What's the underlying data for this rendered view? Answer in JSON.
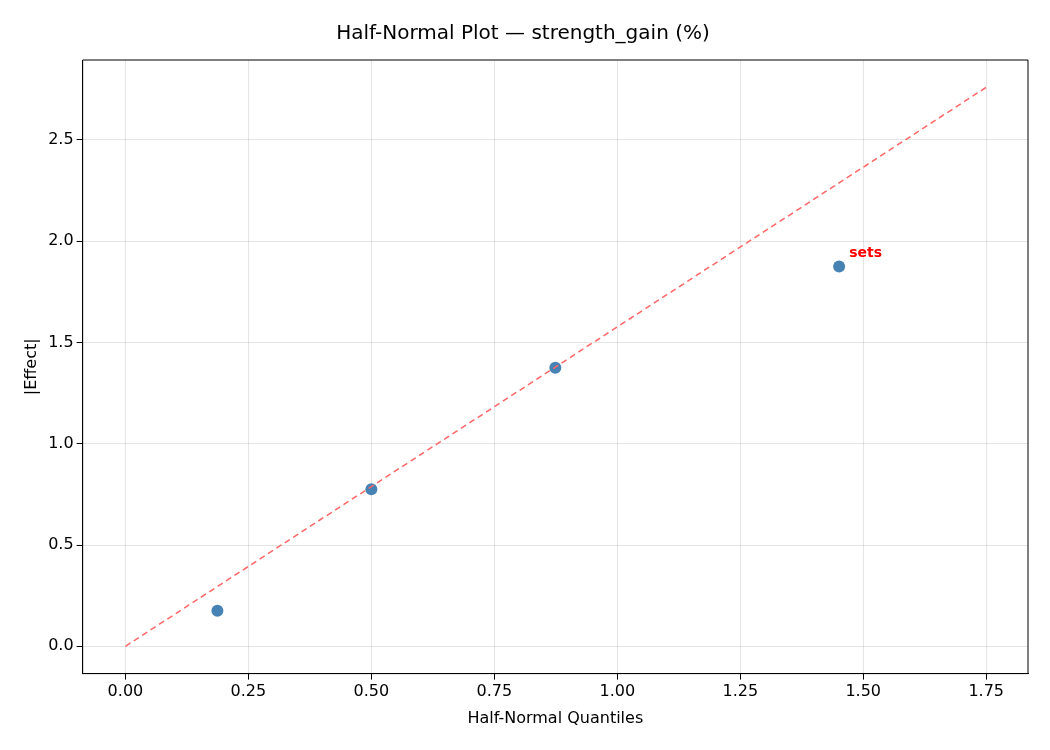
{
  "chart_data": {
    "type": "scatter",
    "title": "Half-Normal Plot — strength_gain (%)",
    "xlabel": "Half-Normal Quantiles",
    "ylabel": "|Effect|",
    "series": [
      {
        "color": "#4682b4",
        "x": [
          0.187,
          0.5,
          0.874,
          1.451
        ],
        "values": [
          0.175,
          0.775,
          1.375,
          1.875
        ],
        "marker": "circle"
      },
      {
        "type": "line",
        "color": "#ff6666",
        "x": [
          0,
          1.75
        ],
        "values": [
          0,
          2.76
        ],
        "line_style": "dashed",
        "marker": "none"
      }
    ],
    "xlim": [
      -0.087,
      1.835
    ],
    "ylim": [
      -0.135,
      2.895
    ],
    "xticks": [
      {
        "value": 0,
        "label": "0.00"
      },
      {
        "value": 0.25,
        "label": "0.25"
      },
      {
        "value": 0.5,
        "label": "0.50"
      },
      {
        "value": 0.75,
        "label": "0.75"
      },
      {
        "value": 1,
        "label": "1.00"
      },
      {
        "value": 1.25,
        "label": "1.25"
      },
      {
        "value": 1.5,
        "label": "1.50"
      },
      {
        "value": 1.75,
        "label": "1.75"
      }
    ],
    "yticks": [
      {
        "value": 0,
        "label": "0.0"
      },
      {
        "value": 0.5,
        "label": "0.5"
      },
      {
        "value": 1,
        "label": "1.0"
      },
      {
        "value": 1.5,
        "label": "1.5"
      },
      {
        "value": 2,
        "label": "2.0"
      },
      {
        "value": 2.5,
        "label": "2.5"
      }
    ],
    "grid": true,
    "annotations": [
      {
        "text": "sets",
        "x": 1.451,
        "y": 1.875
      }
    ]
  }
}
